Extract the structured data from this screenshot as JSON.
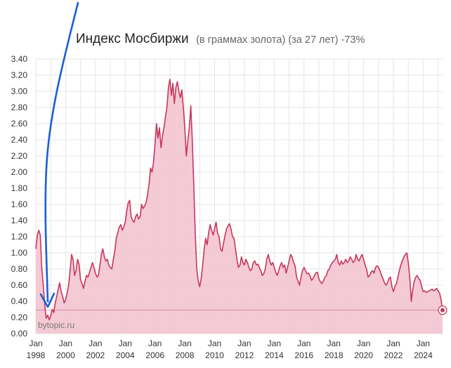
{
  "chart_data": {
    "type": "area",
    "title": "Индекс Мосбиржи",
    "subtitle": "(в граммах золота) (за 27 лет) -73%",
    "watermark": "bytopic.ru",
    "x_ticks": [
      {
        "month": "Jan",
        "year": "1998",
        "x": 1998
      },
      {
        "month": "Jan",
        "year": "2000",
        "x": 2000
      },
      {
        "month": "Jan",
        "year": "2002",
        "x": 2002
      },
      {
        "month": "Jan",
        "year": "2004",
        "x": 2004
      },
      {
        "month": "Jan",
        "year": "2006",
        "x": 2006
      },
      {
        "month": "Jan",
        "year": "2008",
        "x": 2008
      },
      {
        "month": "Jan",
        "year": "2010",
        "x": 2010
      },
      {
        "month": "Jan",
        "year": "2012",
        "x": 2012
      },
      {
        "month": "Jan",
        "year": "2014",
        "x": 2014
      },
      {
        "month": "Jan",
        "year": "2016",
        "x": 2016
      },
      {
        "month": "Jan",
        "year": "2018",
        "x": 2018
      },
      {
        "month": "Jan",
        "year": "2020",
        "x": 2020
      },
      {
        "month": "Jan",
        "year": "2022",
        "x": 2022
      },
      {
        "month": "Jan",
        "year": "2024",
        "x": 2024
      }
    ],
    "y_ticks": [
      "0.00",
      "0.20",
      "0.40",
      "0.60",
      "0.80",
      "1.00",
      "1.20",
      "1.40",
      "1.60",
      "1.80",
      "2.00",
      "2.20",
      "2.40",
      "2.60",
      "2.80",
      "3.00",
      "3.20",
      "3.40"
    ],
    "xlim": [
      1998,
      2025.3
    ],
    "ylim": [
      0,
      3.4
    ],
    "grid": true,
    "reference_line": 0.29,
    "series": [
      {
        "color": "#c8365e",
        "fill": "#f2c4d0",
        "points": [
          [
            1998.0,
            1.05
          ],
          [
            1998.1,
            1.22
          ],
          [
            1998.2,
            1.28
          ],
          [
            1998.3,
            1.22
          ],
          [
            1998.4,
            0.8
          ],
          [
            1998.5,
            0.6
          ],
          [
            1998.6,
            0.35
          ],
          [
            1998.7,
            0.19
          ],
          [
            1998.8,
            0.23
          ],
          [
            1998.9,
            0.17
          ],
          [
            1999.0,
            0.22
          ],
          [
            1999.1,
            0.3
          ],
          [
            1999.2,
            0.26
          ],
          [
            1999.3,
            0.38
          ],
          [
            1999.4,
            0.46
          ],
          [
            1999.5,
            0.55
          ],
          [
            1999.6,
            0.63
          ],
          [
            1999.7,
            0.52
          ],
          [
            1999.8,
            0.46
          ],
          [
            1999.9,
            0.38
          ],
          [
            2000.0,
            0.42
          ],
          [
            2000.1,
            0.5
          ],
          [
            2000.2,
            0.6
          ],
          [
            2000.3,
            0.78
          ],
          [
            2000.4,
            0.98
          ],
          [
            2000.5,
            0.92
          ],
          [
            2000.6,
            0.72
          ],
          [
            2000.7,
            0.78
          ],
          [
            2000.8,
            0.92
          ],
          [
            2000.9,
            0.86
          ],
          [
            2001.0,
            0.67
          ],
          [
            2001.1,
            0.62
          ],
          [
            2001.2,
            0.56
          ],
          [
            2001.3,
            0.65
          ],
          [
            2001.4,
            0.72
          ],
          [
            2001.5,
            0.7
          ],
          [
            2001.6,
            0.76
          ],
          [
            2001.7,
            0.82
          ],
          [
            2001.8,
            0.88
          ],
          [
            2001.9,
            0.82
          ],
          [
            2002.0,
            0.75
          ],
          [
            2002.1,
            0.7
          ],
          [
            2002.2,
            0.72
          ],
          [
            2002.3,
            0.85
          ],
          [
            2002.4,
            0.98
          ],
          [
            2002.5,
            1.05
          ],
          [
            2002.6,
            0.95
          ],
          [
            2002.7,
            0.9
          ],
          [
            2002.8,
            0.92
          ],
          [
            2002.9,
            0.85
          ],
          [
            2003.0,
            0.82
          ],
          [
            2003.1,
            0.8
          ],
          [
            2003.2,
            0.92
          ],
          [
            2003.3,
            1.02
          ],
          [
            2003.4,
            1.18
          ],
          [
            2003.5,
            1.25
          ],
          [
            2003.6,
            1.32
          ],
          [
            2003.7,
            1.35
          ],
          [
            2003.8,
            1.28
          ],
          [
            2003.9,
            1.32
          ],
          [
            2004.0,
            1.38
          ],
          [
            2004.1,
            1.52
          ],
          [
            2004.2,
            1.62
          ],
          [
            2004.3,
            1.65
          ],
          [
            2004.4,
            1.45
          ],
          [
            2004.5,
            1.4
          ],
          [
            2004.6,
            1.38
          ],
          [
            2004.7,
            1.45
          ],
          [
            2004.8,
            1.48
          ],
          [
            2004.9,
            1.42
          ],
          [
            2005.0,
            1.45
          ],
          [
            2005.1,
            1.6
          ],
          [
            2005.2,
            1.55
          ],
          [
            2005.3,
            1.58
          ],
          [
            2005.4,
            1.62
          ],
          [
            2005.5,
            1.72
          ],
          [
            2005.6,
            1.85
          ],
          [
            2005.7,
            2.05
          ],
          [
            2005.8,
            2.0
          ],
          [
            2005.9,
            2.12
          ],
          [
            2006.0,
            2.35
          ],
          [
            2006.1,
            2.6
          ],
          [
            2006.2,
            2.42
          ],
          [
            2006.3,
            2.55
          ],
          [
            2006.4,
            2.3
          ],
          [
            2006.5,
            2.45
          ],
          [
            2006.6,
            2.55
          ],
          [
            2006.7,
            2.68
          ],
          [
            2006.8,
            2.8
          ],
          [
            2006.9,
            3.05
          ],
          [
            2007.0,
            3.15
          ],
          [
            2007.1,
            2.95
          ],
          [
            2007.2,
            3.1
          ],
          [
            2007.3,
            2.85
          ],
          [
            2007.4,
            3.05
          ],
          [
            2007.5,
            3.12
          ],
          [
            2007.6,
            3.0
          ],
          [
            2007.7,
            2.92
          ],
          [
            2007.8,
            3.02
          ],
          [
            2007.9,
            2.8
          ],
          [
            2008.0,
            2.55
          ],
          [
            2008.1,
            2.2
          ],
          [
            2008.2,
            2.38
          ],
          [
            2008.3,
            2.55
          ],
          [
            2008.4,
            2.82
          ],
          [
            2008.5,
            2.4
          ],
          [
            2008.6,
            1.85
          ],
          [
            2008.7,
            1.25
          ],
          [
            2008.8,
            0.8
          ],
          [
            2008.9,
            0.65
          ],
          [
            2009.0,
            0.58
          ],
          [
            2009.1,
            0.68
          ],
          [
            2009.2,
            0.85
          ],
          [
            2009.3,
            1.05
          ],
          [
            2009.4,
            1.18
          ],
          [
            2009.5,
            1.1
          ],
          [
            2009.6,
            1.25
          ],
          [
            2009.7,
            1.35
          ],
          [
            2009.8,
            1.28
          ],
          [
            2009.9,
            1.22
          ],
          [
            2010.0,
            1.3
          ],
          [
            2010.1,
            1.38
          ],
          [
            2010.2,
            1.25
          ],
          [
            2010.3,
            1.2
          ],
          [
            2010.4,
            1.05
          ],
          [
            2010.5,
            1.02
          ],
          [
            2010.6,
            1.12
          ],
          [
            2010.7,
            1.22
          ],
          [
            2010.8,
            1.3
          ],
          [
            2010.9,
            1.33
          ],
          [
            2011.0,
            1.36
          ],
          [
            2011.1,
            1.3
          ],
          [
            2011.2,
            1.2
          ],
          [
            2011.3,
            1.18
          ],
          [
            2011.4,
            1.05
          ],
          [
            2011.5,
            0.92
          ],
          [
            2011.6,
            0.82
          ],
          [
            2011.7,
            0.85
          ],
          [
            2011.8,
            0.95
          ],
          [
            2011.9,
            0.88
          ],
          [
            2012.0,
            0.85
          ],
          [
            2012.1,
            0.92
          ],
          [
            2012.2,
            0.88
          ],
          [
            2012.3,
            0.82
          ],
          [
            2012.4,
            0.78
          ],
          [
            2012.5,
            0.8
          ],
          [
            2012.6,
            0.88
          ],
          [
            2012.7,
            0.9
          ],
          [
            2012.8,
            0.85
          ],
          [
            2012.9,
            0.86
          ],
          [
            2013.0,
            0.82
          ],
          [
            2013.1,
            0.78
          ],
          [
            2013.2,
            0.72
          ],
          [
            2013.3,
            0.74
          ],
          [
            2013.4,
            0.8
          ],
          [
            2013.5,
            0.92
          ],
          [
            2013.6,
            0.98
          ],
          [
            2013.7,
            0.9
          ],
          [
            2013.8,
            0.85
          ],
          [
            2013.9,
            0.88
          ],
          [
            2014.0,
            0.82
          ],
          [
            2014.1,
            0.76
          ],
          [
            2014.2,
            0.72
          ],
          [
            2014.3,
            0.78
          ],
          [
            2014.4,
            0.84
          ],
          [
            2014.5,
            0.88
          ],
          [
            2014.6,
            0.82
          ],
          [
            2014.7,
            0.85
          ],
          [
            2014.8,
            0.75
          ],
          [
            2014.9,
            0.82
          ],
          [
            2015.0,
            0.9
          ],
          [
            2015.1,
            0.98
          ],
          [
            2015.2,
            0.95
          ],
          [
            2015.3,
            0.88
          ],
          [
            2015.4,
            0.84
          ],
          [
            2015.5,
            0.7
          ],
          [
            2015.6,
            0.65
          ],
          [
            2015.7,
            0.6
          ],
          [
            2015.8,
            0.7
          ],
          [
            2015.9,
            0.78
          ],
          [
            2016.0,
            0.82
          ],
          [
            2016.1,
            0.78
          ],
          [
            2016.2,
            0.74
          ],
          [
            2016.3,
            0.75
          ],
          [
            2016.4,
            0.72
          ],
          [
            2016.5,
            0.66
          ],
          [
            2016.6,
            0.68
          ],
          [
            2016.7,
            0.72
          ],
          [
            2016.8,
            0.75
          ],
          [
            2016.9,
            0.76
          ],
          [
            2017.0,
            0.68
          ],
          [
            2017.1,
            0.64
          ],
          [
            2017.2,
            0.62
          ],
          [
            2017.3,
            0.65
          ],
          [
            2017.4,
            0.7
          ],
          [
            2017.5,
            0.72
          ],
          [
            2017.6,
            0.78
          ],
          [
            2017.7,
            0.8
          ],
          [
            2017.8,
            0.85
          ],
          [
            2017.9,
            0.88
          ],
          [
            2018.0,
            0.9
          ],
          [
            2018.1,
            0.92
          ],
          [
            2018.2,
            0.98
          ],
          [
            2018.3,
            0.88
          ],
          [
            2018.4,
            0.85
          ],
          [
            2018.5,
            0.9
          ],
          [
            2018.6,
            0.86
          ],
          [
            2018.7,
            0.88
          ],
          [
            2018.8,
            0.92
          ],
          [
            2018.9,
            0.88
          ],
          [
            2019.0,
            0.9
          ],
          [
            2019.1,
            0.95
          ],
          [
            2019.2,
            0.92
          ],
          [
            2019.3,
            0.88
          ],
          [
            2019.4,
            0.9
          ],
          [
            2019.5,
            0.98
          ],
          [
            2019.6,
            0.92
          ],
          [
            2019.7,
            0.9
          ],
          [
            2019.8,
            0.95
          ],
          [
            2019.9,
            0.98
          ],
          [
            2020.0,
            0.92
          ],
          [
            2020.1,
            0.85
          ],
          [
            2020.2,
            0.8
          ],
          [
            2020.3,
            0.7
          ],
          [
            2020.4,
            0.72
          ],
          [
            2020.5,
            0.76
          ],
          [
            2020.6,
            0.78
          ],
          [
            2020.7,
            0.75
          ],
          [
            2020.8,
            0.82
          ],
          [
            2020.9,
            0.84
          ],
          [
            2021.0,
            0.82
          ],
          [
            2021.1,
            0.78
          ],
          [
            2021.2,
            0.72
          ],
          [
            2021.3,
            0.68
          ],
          [
            2021.4,
            0.63
          ],
          [
            2021.5,
            0.6
          ],
          [
            2021.6,
            0.63
          ],
          [
            2021.7,
            0.68
          ],
          [
            2021.8,
            0.7
          ],
          [
            2021.9,
            0.58
          ],
          [
            2022.0,
            0.52
          ],
          [
            2022.1,
            0.58
          ],
          [
            2022.2,
            0.62
          ],
          [
            2022.3,
            0.7
          ],
          [
            2022.4,
            0.78
          ],
          [
            2022.5,
            0.85
          ],
          [
            2022.6,
            0.9
          ],
          [
            2022.7,
            0.95
          ],
          [
            2022.8,
            0.98
          ],
          [
            2022.9,
            1.0
          ],
          [
            2023.0,
            0.88
          ],
          [
            2023.1,
            0.7
          ],
          [
            2023.2,
            0.4
          ],
          [
            2023.3,
            0.55
          ],
          [
            2023.4,
            0.65
          ],
          [
            2023.5,
            0.7
          ],
          [
            2023.6,
            0.72
          ],
          [
            2023.7,
            0.68
          ],
          [
            2023.8,
            0.66
          ],
          [
            2023.9,
            0.58
          ],
          [
            2024.0,
            0.52
          ],
          [
            2024.1,
            0.53
          ],
          [
            2024.2,
            0.51
          ],
          [
            2024.3,
            0.52
          ],
          [
            2024.4,
            0.53
          ],
          [
            2024.5,
            0.54
          ],
          [
            2024.6,
            0.55
          ],
          [
            2024.7,
            0.53
          ],
          [
            2024.8,
            0.54
          ],
          [
            2024.9,
            0.56
          ],
          [
            2025.0,
            0.53
          ],
          [
            2025.1,
            0.5
          ],
          [
            2025.2,
            0.42
          ],
          [
            2025.3,
            0.29
          ]
        ]
      }
    ],
    "annotation": {
      "type": "arrow",
      "color": "#1a5fd6",
      "target": [
        1998.8,
        0.33
      ]
    }
  }
}
